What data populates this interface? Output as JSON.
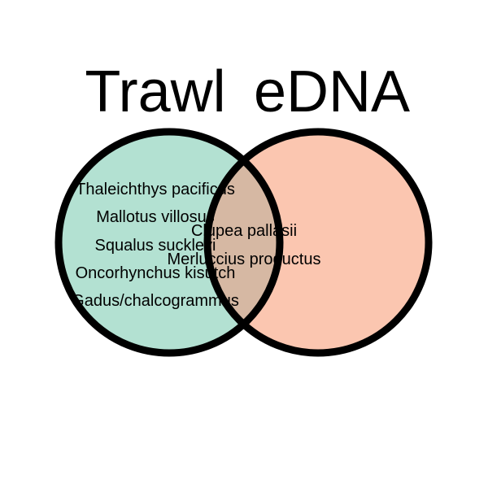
{
  "sets": {
    "left": {
      "title": "Trawl",
      "fill_color": "#b3e1d2"
    },
    "right": {
      "title": "eDNA",
      "fill_color": "#fbc6b0"
    },
    "overlap_fill_color": "#d6b8a3",
    "outline_color": "#000000"
  },
  "regions": {
    "trawl_only": [
      "Thaleichthys pacificus",
      "Mallotus villosus",
      "Squalus suckleyi",
      "Oncorhynchus kisutch",
      "Gadus/chalcogrammus"
    ],
    "both": [
      "Clupea pallasii",
      "Merluccius productus"
    ],
    "edna_only": []
  }
}
